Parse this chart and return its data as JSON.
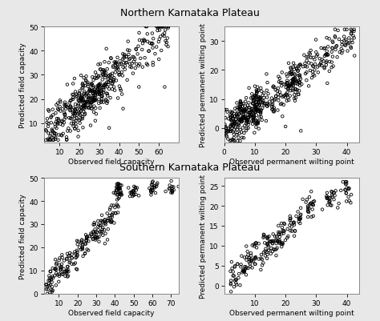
{
  "title_top": "Northern Karnataka Plateau",
  "title_bottom": "Southern Karnataka Plateau",
  "nkp_fc": {
    "xlabel": "Observed field capacity",
    "ylabel": "Predicted field capacity",
    "xlim": [
      2,
      70
    ],
    "ylim": [
      2,
      50
    ],
    "xticks": [
      10,
      20,
      30,
      40,
      50,
      60
    ],
    "yticks": [
      10,
      20,
      30,
      40,
      50
    ]
  },
  "nkp_pwp": {
    "xlabel": "Observed permanent wilting point",
    "ylabel": "Predicted permanent wilting point",
    "xlim": [
      0,
      44
    ],
    "ylim": [
      -5,
      35
    ],
    "xticks": [
      0,
      10,
      20,
      30,
      40
    ],
    "yticks": [
      0,
      10,
      20,
      30
    ]
  },
  "skp_fc": {
    "xlabel": "Observed field capacity",
    "ylabel": "Predicted field capacity",
    "xlim": [
      2,
      74
    ],
    "ylim": [
      0,
      50
    ],
    "xticks": [
      10,
      20,
      30,
      40,
      50,
      60,
      70
    ],
    "yticks": [
      0,
      10,
      20,
      30,
      40,
      50
    ]
  },
  "skp_pwp": {
    "xlabel": "Observed permanent wilting point",
    "ylabel": "Predicted permanent wilting point",
    "xlim": [
      0,
      44
    ],
    "ylim": [
      -2,
      27
    ],
    "xticks": [
      10,
      20,
      30,
      40
    ],
    "yticks": [
      0,
      5,
      10,
      15,
      20,
      25
    ]
  },
  "marker_size": 2.5,
  "marker_color": "black",
  "linewidth": 0.6,
  "background_color": "#e8e8e8",
  "plot_bg": "white",
  "title_fontsize": 9,
  "label_fontsize": 6.5,
  "tick_fontsize": 6.5
}
